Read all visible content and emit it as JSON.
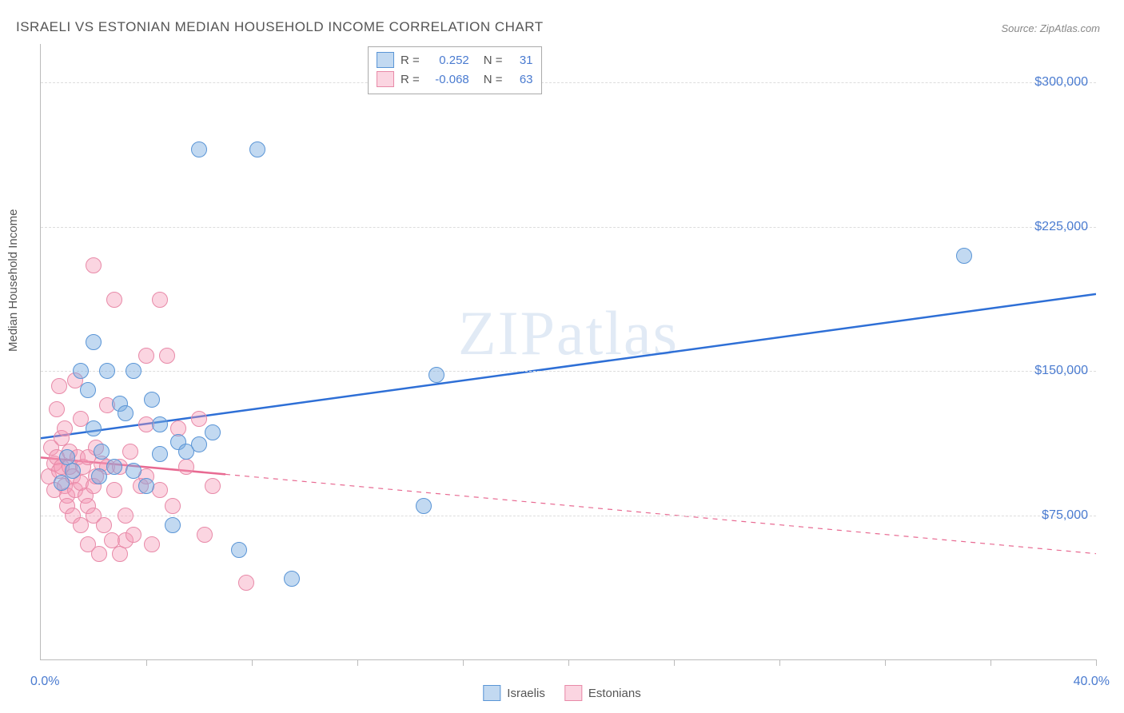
{
  "title": "ISRAELI VS ESTONIAN MEDIAN HOUSEHOLD INCOME CORRELATION CHART",
  "source": "Source: ZipAtlas.com",
  "watermark": "ZIPatlas",
  "ylabel": "Median Household Income",
  "chart": {
    "type": "scatter",
    "xlim": [
      0,
      40
    ],
    "ylim": [
      0,
      320000
    ],
    "x_unit": "%",
    "xtick_positions": [
      4,
      8,
      12,
      16,
      20,
      24,
      28,
      32,
      36,
      40
    ],
    "xlabel_min": "0.0%",
    "xlabel_max": "40.0%",
    "ytick_values": [
      75000,
      150000,
      225000,
      300000
    ],
    "ytick_labels": [
      "$75,000",
      "$150,000",
      "$225,000",
      "$300,000"
    ],
    "grid_color": "#dddddd",
    "background_color": "#ffffff",
    "axis_color": "#bbbbbb",
    "tick_label_color": "#4a7bd0",
    "marker_radius": 9,
    "marker_stroke_width": 1.5,
    "trend_line_width": 2.5
  },
  "series": [
    {
      "name": "Israelis",
      "fill_color": "rgba(120,170,225,0.45)",
      "stroke_color": "#5a95d6",
      "trend_color": "#2e6fd6",
      "trend": {
        "x1": 0,
        "y1": 115000,
        "x2": 40,
        "y2": 190000,
        "solid_until_x": 40
      },
      "stats": {
        "R": "0.252",
        "N": "31"
      },
      "points": [
        {
          "x": 0.8,
          "y": 92000
        },
        {
          "x": 1.0,
          "y": 105000
        },
        {
          "x": 1.2,
          "y": 98000
        },
        {
          "x": 1.5,
          "y": 150000
        },
        {
          "x": 1.8,
          "y": 140000
        },
        {
          "x": 2.0,
          "y": 165000
        },
        {
          "x": 2.0,
          "y": 120000
        },
        {
          "x": 2.2,
          "y": 95000
        },
        {
          "x": 2.3,
          "y": 108000
        },
        {
          "x": 2.5,
          "y": 150000
        },
        {
          "x": 2.8,
          "y": 100000
        },
        {
          "x": 3.0,
          "y": 133000
        },
        {
          "x": 3.2,
          "y": 128000
        },
        {
          "x": 3.5,
          "y": 98000
        },
        {
          "x": 3.5,
          "y": 150000
        },
        {
          "x": 4.0,
          "y": 90000
        },
        {
          "x": 4.2,
          "y": 135000
        },
        {
          "x": 4.5,
          "y": 107000
        },
        {
          "x": 4.5,
          "y": 122000
        },
        {
          "x": 5.0,
          "y": 70000
        },
        {
          "x": 5.2,
          "y": 113000
        },
        {
          "x": 5.5,
          "y": 108000
        },
        {
          "x": 6.0,
          "y": 112000
        },
        {
          "x": 6.5,
          "y": 118000
        },
        {
          "x": 7.5,
          "y": 57000
        },
        {
          "x": 9.5,
          "y": 42000
        },
        {
          "x": 6.0,
          "y": 265000
        },
        {
          "x": 8.2,
          "y": 265000
        },
        {
          "x": 14.5,
          "y": 80000
        },
        {
          "x": 15.0,
          "y": 148000
        },
        {
          "x": 35.0,
          "y": 210000
        }
      ]
    },
    {
      "name": "Estonians",
      "fill_color": "rgba(245,150,180,0.40)",
      "stroke_color": "#e88aa8",
      "trend_color": "#e86a92",
      "trend": {
        "x1": 0,
        "y1": 105000,
        "x2": 40,
        "y2": 55000,
        "solid_until_x": 7
      },
      "stats": {
        "R": "-0.068",
        "N": "63"
      },
      "points": [
        {
          "x": 0.3,
          "y": 95000
        },
        {
          "x": 0.4,
          "y": 110000
        },
        {
          "x": 0.5,
          "y": 102000
        },
        {
          "x": 0.5,
          "y": 88000
        },
        {
          "x": 0.6,
          "y": 130000
        },
        {
          "x": 0.6,
          "y": 105000
        },
        {
          "x": 0.7,
          "y": 98000
        },
        {
          "x": 0.7,
          "y": 142000
        },
        {
          "x": 0.8,
          "y": 115000
        },
        {
          "x": 0.8,
          "y": 100000
        },
        {
          "x": 0.9,
          "y": 90000
        },
        {
          "x": 0.9,
          "y": 120000
        },
        {
          "x": 1.0,
          "y": 85000
        },
        {
          "x": 1.0,
          "y": 80000
        },
        {
          "x": 1.1,
          "y": 100000
        },
        {
          "x": 1.1,
          "y": 108000
        },
        {
          "x": 1.2,
          "y": 95000
        },
        {
          "x": 1.2,
          "y": 75000
        },
        {
          "x": 1.3,
          "y": 145000
        },
        {
          "x": 1.3,
          "y": 88000
        },
        {
          "x": 1.4,
          "y": 105000
        },
        {
          "x": 1.5,
          "y": 92000
        },
        {
          "x": 1.5,
          "y": 70000
        },
        {
          "x": 1.5,
          "y": 125000
        },
        {
          "x": 1.6,
          "y": 100000
        },
        {
          "x": 1.7,
          "y": 85000
        },
        {
          "x": 1.8,
          "y": 60000
        },
        {
          "x": 1.8,
          "y": 80000
        },
        {
          "x": 1.8,
          "y": 105000
        },
        {
          "x": 2.0,
          "y": 90000
        },
        {
          "x": 2.0,
          "y": 75000
        },
        {
          "x": 2.0,
          "y": 205000
        },
        {
          "x": 2.1,
          "y": 110000
        },
        {
          "x": 2.1,
          "y": 95000
        },
        {
          "x": 2.2,
          "y": 55000
        },
        {
          "x": 2.3,
          "y": 102000
        },
        {
          "x": 2.4,
          "y": 70000
        },
        {
          "x": 2.5,
          "y": 132000
        },
        {
          "x": 2.5,
          "y": 100000
        },
        {
          "x": 2.7,
          "y": 62000
        },
        {
          "x": 2.8,
          "y": 88000
        },
        {
          "x": 2.8,
          "y": 187000
        },
        {
          "x": 3.0,
          "y": 100000
        },
        {
          "x": 3.0,
          "y": 55000
        },
        {
          "x": 3.2,
          "y": 62000
        },
        {
          "x": 3.2,
          "y": 75000
        },
        {
          "x": 3.4,
          "y": 108000
        },
        {
          "x": 3.5,
          "y": 65000
        },
        {
          "x": 3.8,
          "y": 90000
        },
        {
          "x": 4.0,
          "y": 95000
        },
        {
          "x": 4.0,
          "y": 122000
        },
        {
          "x": 4.0,
          "y": 158000
        },
        {
          "x": 4.2,
          "y": 60000
        },
        {
          "x": 4.5,
          "y": 187000
        },
        {
          "x": 4.5,
          "y": 88000
        },
        {
          "x": 4.8,
          "y": 158000
        },
        {
          "x": 5.0,
          "y": 80000
        },
        {
          "x": 5.2,
          "y": 120000
        },
        {
          "x": 5.5,
          "y": 100000
        },
        {
          "x": 6.0,
          "y": 125000
        },
        {
          "x": 6.2,
          "y": 65000
        },
        {
          "x": 6.5,
          "y": 90000
        },
        {
          "x": 7.8,
          "y": 40000
        }
      ]
    }
  ],
  "stats_box": {
    "r_label": "R =",
    "n_label": "N ="
  },
  "bottom_legend": [
    {
      "label": "Israelis",
      "series_index": 0
    },
    {
      "label": "Estonians",
      "series_index": 1
    }
  ]
}
